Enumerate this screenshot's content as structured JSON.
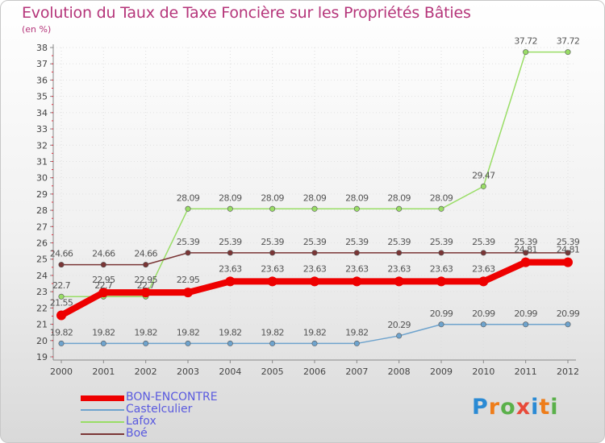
{
  "title": "Evolution du Taux de Taxe Foncière sur les Propriétés Bâties",
  "unit": "(en %)",
  "logo": {
    "letters": [
      "P",
      "r",
      "o",
      "x",
      "i",
      "t",
      "i"
    ]
  },
  "chart_data": {
    "type": "line",
    "x": [
      "2000",
      "2001",
      "2002",
      "2003",
      "2004",
      "2005",
      "2006",
      "2007",
      "2008",
      "2009",
      "2010",
      "2011",
      "2012"
    ],
    "ylim": [
      19,
      38
    ],
    "yticks": [
      19,
      20,
      21,
      22,
      23,
      24,
      25,
      26,
      27,
      28,
      29,
      30,
      31,
      32,
      33,
      34,
      35,
      36,
      37,
      38
    ],
    "series": [
      {
        "name": "BON-ENCONTRE",
        "color": "#ee0000",
        "values": [
          21.55,
          22.95,
          22.95,
          22.95,
          23.63,
          23.63,
          23.63,
          23.63,
          23.63,
          23.63,
          23.63,
          24.81,
          24.81
        ],
        "labels": [
          "21.55",
          "22.95",
          "22.95",
          "22.95",
          "23.63",
          "23.63",
          "23.63",
          "23.63",
          "23.63",
          "23.63",
          "23.63",
          "24.81",
          "24.81"
        ]
      },
      {
        "name": "Castelculier",
        "color": "#6ea3cd",
        "values": [
          19.82,
          19.82,
          19.82,
          19.82,
          19.82,
          19.82,
          19.82,
          19.82,
          20.29,
          20.99,
          20.99,
          20.99,
          20.99
        ],
        "labels": [
          "19.82",
          "19.82",
          "19.82",
          "19.82",
          "19.82",
          "19.82",
          "19.82",
          "19.82",
          "20.29",
          "20.99",
          "20.99",
          "20.99",
          "20.99"
        ]
      },
      {
        "name": "Lafox",
        "color": "#99dd66",
        "values": [
          22.7,
          22.7,
          22.7,
          28.09,
          28.09,
          28.09,
          28.09,
          28.09,
          28.09,
          28.09,
          29.47,
          37.72,
          37.72
        ],
        "labels": [
          "22.7",
          "22.7",
          "22.7",
          "28.09",
          "28.09",
          "28.09",
          "28.09",
          "28.09",
          "28.09",
          "28.09",
          "29.47",
          "37.72",
          "37.72"
        ]
      },
      {
        "name": "Boé",
        "color": "#7a3535",
        "values": [
          24.66,
          24.66,
          24.66,
          25.39,
          25.39,
          25.39,
          25.39,
          25.39,
          25.39,
          25.39,
          25.39,
          25.39,
          25.39
        ],
        "labels": [
          "24.66",
          "24.66",
          "24.66",
          "25.39",
          "25.39",
          "25.39",
          "25.39",
          "25.39",
          "25.39",
          "25.39",
          "25.39",
          "25.39",
          "25.39"
        ]
      }
    ],
    "xlabel": "",
    "ylabel": "(en %)",
    "legend_position": "bottom-left"
  }
}
